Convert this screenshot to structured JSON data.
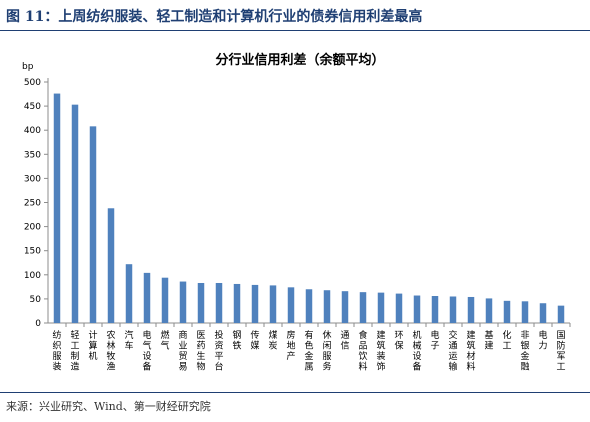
{
  "figure": {
    "title": "图 11：上周纺织服装、轻工制造和计算机行业的债券信用利差最高",
    "source": "来源：兴业研究、Wind、第一财经研究院"
  },
  "colors": {
    "accent": "#1f3f73",
    "bar": "#4f81bd",
    "axis": "#8c8c8c"
  },
  "chart_data": {
    "type": "bar",
    "title": "分行业信用利差（余额平均）",
    "ylabel": "bp",
    "xlabel": "",
    "ylim": [
      0,
      500
    ],
    "yticks": [
      0,
      50,
      100,
      150,
      200,
      250,
      300,
      350,
      400,
      450,
      500
    ],
    "grid": false,
    "legend": "none",
    "categories": [
      "纺织服装",
      "轻工制造",
      "计算机",
      "农林牧渔",
      "汽车",
      "电气设备",
      "燃气",
      "商业贸易",
      "医药生物",
      "投资平台",
      "钢铁",
      "传媒",
      "煤炭",
      "房地产",
      "有色金属",
      "休闲服务",
      "通信",
      "食品饮料",
      "建筑装饰",
      "环保",
      "机械设备",
      "电子",
      "交通运输",
      "建筑材料",
      "基建",
      "化工",
      "非银金融",
      "电力",
      "国防军工"
    ],
    "values": [
      476,
      453,
      408,
      238,
      122,
      104,
      94,
      86,
      83,
      83,
      81,
      79,
      78,
      74,
      70,
      68,
      66,
      64,
      63,
      61,
      57,
      56,
      55,
      54,
      51,
      46,
      45,
      41,
      36
    ]
  }
}
